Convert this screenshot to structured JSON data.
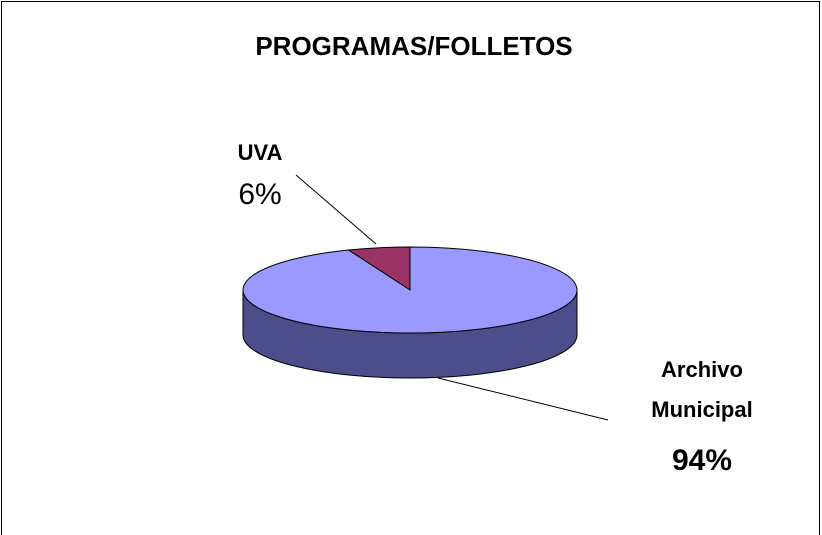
{
  "chart_data": {
    "type": "pie",
    "title": "PROGRAMAS/FOLLETOS",
    "categories": [
      "UVA",
      "Archivo Municipal"
    ],
    "values": [
      6,
      94
    ],
    "value_labels": [
      "6%",
      "94%"
    ],
    "colors": [
      "#993366",
      "#9999ff"
    ],
    "side_colors": [
      "#4d1a33",
      "#4d4d8c"
    ]
  }
}
